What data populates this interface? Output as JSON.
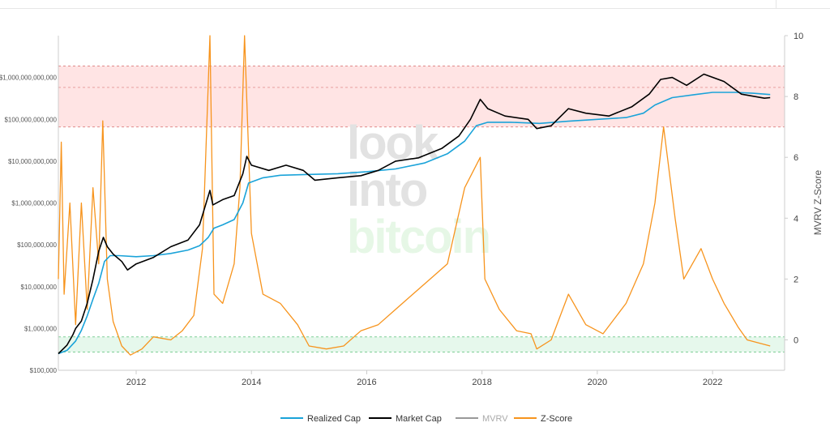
{
  "chart_data": {
    "type": "line",
    "title": "",
    "x_ticks": [
      "2012",
      "2014",
      "2016",
      "2018",
      "2020",
      "2022"
    ],
    "x_range": [
      2010.65,
      2023.25
    ],
    "y_left": {
      "scale": "log",
      "range": [
        100000,
        10000000000000
      ],
      "ticks": [
        "$100,000",
        "$1,000,000",
        "$10,000,000",
        "$100,000,000",
        "$1,000,000,000",
        "$10,000,000,000",
        "$100,000,000,000",
        "$1,000,000,000,000"
      ]
    },
    "y_right": {
      "label": "MVRV Z-Score",
      "range": [
        -1.0,
        10.0
      ],
      "ticks": [
        "0",
        "2",
        "4",
        "6",
        "8",
        "10"
      ]
    },
    "bands": [
      {
        "name": "overvalued-zone",
        "from": 7.0,
        "to": 9.0,
        "mid": 8.3,
        "color": "#ffb3b3"
      },
      {
        "name": "undervalued-zone",
        "from": -0.4,
        "to": 0.1,
        "color": "#b8ecc8"
      }
    ],
    "legend": [
      {
        "label": "Realized Cap",
        "color": "#1aa3d9"
      },
      {
        "label": "Market Cap",
        "color": "#000000"
      },
      {
        "label": "MVRV",
        "color": "#999999"
      },
      {
        "label": "Z-Score",
        "color": "#f7941d"
      }
    ],
    "watermark": [
      "look",
      "into",
      "bitcoin"
    ],
    "series": [
      {
        "name": "Realized Cap",
        "axis": "left",
        "color": "#1aa3d9",
        "points": [
          [
            2010.65,
            250000
          ],
          [
            2010.8,
            300000
          ],
          [
            2010.95,
            500000
          ],
          [
            2011.05,
            900000
          ],
          [
            2011.15,
            2000000
          ],
          [
            2011.25,
            5000000
          ],
          [
            2011.35,
            12000000
          ],
          [
            2011.45,
            40000000
          ],
          [
            2011.55,
            55000000
          ],
          [
            2011.7,
            55000000
          ],
          [
            2012.0,
            52000000
          ],
          [
            2012.3,
            55000000
          ],
          [
            2012.6,
            62000000
          ],
          [
            2012.9,
            75000000
          ],
          [
            2013.1,
            95000000
          ],
          [
            2013.25,
            150000000
          ],
          [
            2013.35,
            250000000
          ],
          [
            2013.5,
            300000000
          ],
          [
            2013.7,
            400000000
          ],
          [
            2013.85,
            1000000000
          ],
          [
            2013.95,
            3000000000
          ],
          [
            2014.2,
            4000000000
          ],
          [
            2014.5,
            4600000000
          ],
          [
            2015.0,
            4800000000
          ],
          [
            2015.5,
            5000000000
          ],
          [
            2016.0,
            5600000000
          ],
          [
            2016.5,
            6500000000
          ],
          [
            2017.0,
            9000000000
          ],
          [
            2017.4,
            15000000000
          ],
          [
            2017.7,
            30000000000
          ],
          [
            2017.9,
            70000000000
          ],
          [
            2018.1,
            85000000000
          ],
          [
            2018.5,
            85000000000
          ],
          [
            2019.0,
            80000000000
          ],
          [
            2019.5,
            90000000000
          ],
          [
            2020.0,
            100000000000
          ],
          [
            2020.5,
            110000000000
          ],
          [
            2020.8,
            140000000000
          ],
          [
            2021.0,
            220000000000
          ],
          [
            2021.3,
            330000000000
          ],
          [
            2021.7,
            390000000000
          ],
          [
            2022.0,
            440000000000
          ],
          [
            2022.4,
            440000000000
          ],
          [
            2022.7,
            420000000000
          ],
          [
            2023.0,
            390000000000
          ]
        ]
      },
      {
        "name": "Market Cap",
        "axis": "left",
        "color": "#000000",
        "points": [
          [
            2010.65,
            250000
          ],
          [
            2010.8,
            400000
          ],
          [
            2010.9,
            700000
          ],
          [
            2010.95,
            1000000
          ],
          [
            2011.05,
            1500000
          ],
          [
            2011.15,
            4000000
          ],
          [
            2011.25,
            15000000
          ],
          [
            2011.35,
            70000000
          ],
          [
            2011.43,
            150000000
          ],
          [
            2011.5,
            90000000
          ],
          [
            2011.6,
            60000000
          ],
          [
            2011.75,
            40000000
          ],
          [
            2011.85,
            25000000
          ],
          [
            2012.0,
            35000000
          ],
          [
            2012.3,
            50000000
          ],
          [
            2012.6,
            90000000
          ],
          [
            2012.9,
            130000000
          ],
          [
            2013.1,
            300000000
          ],
          [
            2013.28,
            2000000000
          ],
          [
            2013.33,
            900000000
          ],
          [
            2013.5,
            1200000000
          ],
          [
            2013.7,
            1500000000
          ],
          [
            2013.85,
            5000000000
          ],
          [
            2013.92,
            13000000000
          ],
          [
            2014.0,
            8000000000
          ],
          [
            2014.3,
            6000000000
          ],
          [
            2014.6,
            8000000000
          ],
          [
            2014.9,
            6000000000
          ],
          [
            2015.1,
            3500000000
          ],
          [
            2015.5,
            4000000000
          ],
          [
            2015.9,
            4500000000
          ],
          [
            2016.2,
            6000000000
          ],
          [
            2016.5,
            10000000000
          ],
          [
            2016.9,
            12000000000
          ],
          [
            2017.3,
            20000000000
          ],
          [
            2017.6,
            40000000000
          ],
          [
            2017.8,
            100000000000
          ],
          [
            2017.97,
            300000000000
          ],
          [
            2018.1,
            180000000000
          ],
          [
            2018.4,
            120000000000
          ],
          [
            2018.8,
            100000000000
          ],
          [
            2018.95,
            60000000000
          ],
          [
            2019.2,
            70000000000
          ],
          [
            2019.5,
            180000000000
          ],
          [
            2019.8,
            140000000000
          ],
          [
            2020.2,
            120000000000
          ],
          [
            2020.6,
            200000000000
          ],
          [
            2020.9,
            400000000000
          ],
          [
            2021.1,
            900000000000
          ],
          [
            2021.3,
            1000000000000
          ],
          [
            2021.55,
            650000000000
          ],
          [
            2021.85,
            1200000000000
          ],
          [
            2022.2,
            800000000000
          ],
          [
            2022.5,
            400000000000
          ],
          [
            2022.9,
            320000000000
          ],
          [
            2023.0,
            330000000000
          ]
        ]
      },
      {
        "name": "Z-Score",
        "axis": "right",
        "color": "#f7941d",
        "points": [
          [
            2010.65,
            2.0
          ],
          [
            2010.7,
            6.5
          ],
          [
            2010.75,
            1.5
          ],
          [
            2010.85,
            4.5
          ],
          [
            2010.95,
            0.5
          ],
          [
            2011.05,
            4.5
          ],
          [
            2011.15,
            1.0
          ],
          [
            2011.25,
            5.0
          ],
          [
            2011.35,
            2.5
          ],
          [
            2011.42,
            7.2
          ],
          [
            2011.5,
            2.0
          ],
          [
            2011.6,
            0.6
          ],
          [
            2011.75,
            -0.2
          ],
          [
            2011.9,
            -0.5
          ],
          [
            2012.1,
            -0.3
          ],
          [
            2012.3,
            0.1
          ],
          [
            2012.6,
            0.0
          ],
          [
            2012.8,
            0.3
          ],
          [
            2013.0,
            0.8
          ],
          [
            2013.15,
            3.0
          ],
          [
            2013.28,
            10.0
          ],
          [
            2013.35,
            1.5
          ],
          [
            2013.5,
            1.2
          ],
          [
            2013.7,
            2.5
          ],
          [
            2013.8,
            5.0
          ],
          [
            2013.88,
            10.0
          ],
          [
            2014.0,
            3.5
          ],
          [
            2014.2,
            1.5
          ],
          [
            2014.5,
            1.2
          ],
          [
            2014.8,
            0.5
          ],
          [
            2015.0,
            -0.2
          ],
          [
            2015.3,
            -0.3
          ],
          [
            2015.6,
            -0.2
          ],
          [
            2015.9,
            0.3
          ],
          [
            2016.2,
            0.5
          ],
          [
            2016.5,
            1.0
          ],
          [
            2016.8,
            1.5
          ],
          [
            2017.1,
            2.0
          ],
          [
            2017.4,
            2.5
          ],
          [
            2017.7,
            5.0
          ],
          [
            2017.97,
            6.0
          ],
          [
            2018.05,
            2.0
          ],
          [
            2018.3,
            1.0
          ],
          [
            2018.6,
            0.3
          ],
          [
            2018.85,
            0.2
          ],
          [
            2018.95,
            -0.3
          ],
          [
            2019.2,
            0.0
          ],
          [
            2019.5,
            1.5
          ],
          [
            2019.8,
            0.5
          ],
          [
            2020.1,
            0.2
          ],
          [
            2020.5,
            1.2
          ],
          [
            2020.8,
            2.5
          ],
          [
            2021.0,
            4.5
          ],
          [
            2021.15,
            7.0
          ],
          [
            2021.35,
            4.0
          ],
          [
            2021.5,
            2.0
          ],
          [
            2021.8,
            3.0
          ],
          [
            2022.0,
            2.0
          ],
          [
            2022.2,
            1.2
          ],
          [
            2022.45,
            0.4
          ],
          [
            2022.6,
            0.0
          ],
          [
            2022.8,
            -0.1
          ],
          [
            2023.0,
            -0.2
          ]
        ]
      }
    ]
  }
}
